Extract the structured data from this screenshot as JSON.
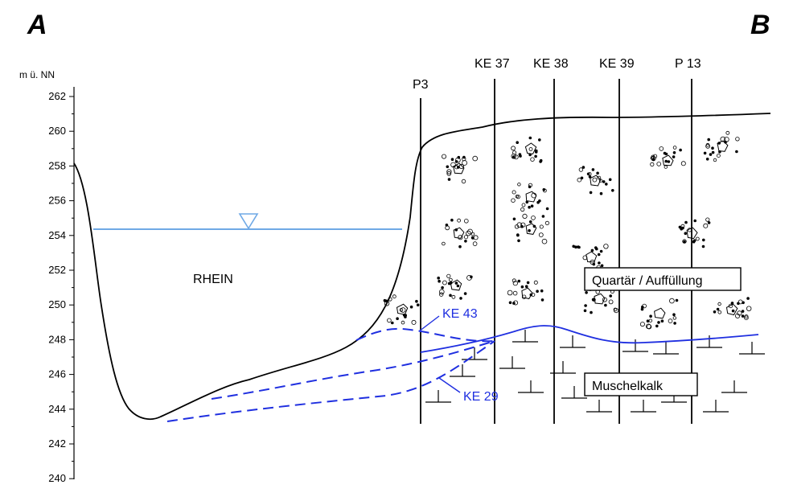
{
  "corners": {
    "left": "A",
    "right": "B"
  },
  "axis": {
    "unit": "m ü. NN",
    "min": 240,
    "max": 262,
    "ticks": [
      "262",
      "260",
      "258",
      "256",
      "254",
      "252",
      "250",
      "248",
      "246",
      "244",
      "242",
      "240"
    ]
  },
  "river": {
    "label": "RHEIN",
    "water_level": 254.4
  },
  "boreholes": [
    {
      "label": "P3"
    },
    {
      "label": "KE 37"
    },
    {
      "label": "KE 38"
    },
    {
      "label": "KE 39"
    },
    {
      "label": "P 13"
    }
  ],
  "layers": {
    "upper": "Quartär / Auffüllung",
    "lower": "Muschelkalk"
  },
  "lines": {
    "ke43": "KE 43",
    "ke29": "KE 29"
  },
  "colors": {
    "ink": "#000000",
    "water": "#6fa9e6",
    "lines": "#1f2fe0"
  }
}
